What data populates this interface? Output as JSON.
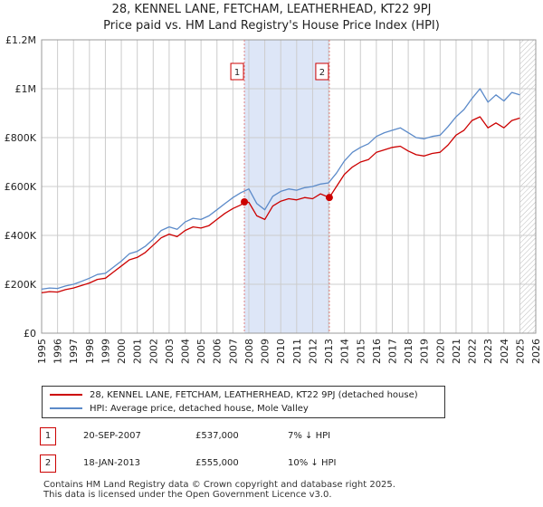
{
  "title": {
    "line1": "28, KENNEL LANE, FETCHAM, LEATHERHEAD, KT22 9PJ",
    "line2": "Price paid vs. HM Land Registry's House Price Index (HPI)"
  },
  "colors": {
    "property": "#cc0000",
    "hpi": "#5b8ac9",
    "shade": "#dde6f7",
    "grid": "#cccccc",
    "marker_line": "#e08080"
  },
  "chart_data": {
    "type": "line",
    "xlim": [
      1995,
      2026
    ],
    "ylim": [
      0,
      1200000
    ],
    "y_ticks": [
      0,
      200000,
      400000,
      600000,
      800000,
      1000000,
      1200000
    ],
    "y_tick_labels": [
      "£0",
      "£200K",
      "£400K",
      "£600K",
      "£800K",
      "£1M",
      "£1.2M"
    ],
    "x_ticks": [
      1995,
      1996,
      1997,
      1998,
      1999,
      2000,
      2001,
      2002,
      2003,
      2004,
      2005,
      2006,
      2007,
      2008,
      2009,
      2010,
      2011,
      2012,
      2013,
      2014,
      2015,
      2016,
      2017,
      2018,
      2019,
      2020,
      2021,
      2022,
      2023,
      2024,
      2025,
      2026
    ],
    "shaded_range": [
      2007.72,
      2013.05
    ],
    "hatched_from": 2025.0,
    "series": [
      {
        "name": "28, KENNEL LANE, FETCHAM, LEATHERHEAD, KT22 9PJ (detached house)",
        "color": "#cc0000",
        "x": [
          1995.0,
          1995.5,
          1996.0,
          1996.5,
          1997.0,
          1997.5,
          1998.0,
          1998.5,
          1999.0,
          1999.5,
          2000.0,
          2000.5,
          2001.0,
          2001.5,
          2002.0,
          2002.5,
          2003.0,
          2003.5,
          2004.0,
          2004.5,
          2005.0,
          2005.5,
          2006.0,
          2006.5,
          2007.0,
          2007.5,
          2007.72,
          2008.0,
          2008.5,
          2009.0,
          2009.5,
          2010.0,
          2010.5,
          2011.0,
          2011.5,
          2012.0,
          2012.5,
          2013.05,
          2013.5,
          2014.0,
          2014.5,
          2015.0,
          2015.5,
          2016.0,
          2016.5,
          2017.0,
          2017.5,
          2018.0,
          2018.5,
          2019.0,
          2019.5,
          2020.0,
          2020.5,
          2021.0,
          2021.5,
          2022.0,
          2022.5,
          2023.0,
          2023.5,
          2024.0,
          2024.5,
          2025.0
        ],
        "values": [
          165000,
          170000,
          168000,
          178000,
          185000,
          195000,
          205000,
          220000,
          225000,
          250000,
          275000,
          300000,
          310000,
          330000,
          360000,
          390000,
          405000,
          395000,
          420000,
          435000,
          430000,
          440000,
          465000,
          490000,
          510000,
          525000,
          537000,
          535000,
          480000,
          465000,
          520000,
          540000,
          550000,
          545000,
          555000,
          550000,
          570000,
          555000,
          600000,
          650000,
          680000,
          700000,
          710000,
          740000,
          750000,
          760000,
          765000,
          745000,
          730000,
          725000,
          735000,
          740000,
          770000,
          810000,
          830000,
          870000,
          885000,
          840000,
          860000,
          840000,
          870000,
          880000
        ]
      },
      {
        "name": "HPI: Average price, detached house, Mole Valley",
        "color": "#5b8ac9",
        "x": [
          1995.0,
          1995.5,
          1996.0,
          1996.5,
          1997.0,
          1997.5,
          1998.0,
          1998.5,
          1999.0,
          1999.5,
          2000.0,
          2000.5,
          2001.0,
          2001.5,
          2002.0,
          2002.5,
          2003.0,
          2003.5,
          2004.0,
          2004.5,
          2005.0,
          2005.5,
          2006.0,
          2006.5,
          2007.0,
          2007.5,
          2008.0,
          2008.5,
          2009.0,
          2009.5,
          2010.0,
          2010.5,
          2011.0,
          2011.5,
          2012.0,
          2012.5,
          2013.0,
          2013.5,
          2014.0,
          2014.5,
          2015.0,
          2015.5,
          2016.0,
          2016.5,
          2017.0,
          2017.5,
          2018.0,
          2018.5,
          2019.0,
          2019.5,
          2020.0,
          2020.5,
          2021.0,
          2021.5,
          2022.0,
          2022.5,
          2023.0,
          2023.5,
          2024.0,
          2024.5,
          2025.0
        ],
        "values": [
          180000,
          185000,
          183000,
          193000,
          200000,
          212000,
          225000,
          240000,
          245000,
          270000,
          295000,
          325000,
          335000,
          355000,
          385000,
          420000,
          435000,
          425000,
          455000,
          470000,
          465000,
          480000,
          505000,
          530000,
          555000,
          575000,
          590000,
          530000,
          505000,
          560000,
          580000,
          590000,
          585000,
          595000,
          600000,
          610000,
          615000,
          655000,
          705000,
          740000,
          760000,
          775000,
          805000,
          820000,
          830000,
          840000,
          820000,
          800000,
          795000,
          805000,
          810000,
          845000,
          885000,
          915000,
          960000,
          1000000,
          945000,
          975000,
          950000,
          985000,
          975000
        ]
      }
    ],
    "markers": [
      {
        "label": "1",
        "x": 2007.72,
        "value": 537000
      },
      {
        "label": "2",
        "x": 2013.05,
        "value": 555000
      }
    ]
  },
  "legend": {
    "property_label": "28, KENNEL LANE, FETCHAM, LEATHERHEAD, KT22 9PJ (detached house)",
    "hpi_label": "HPI: Average price, detached house, Mole Valley"
  },
  "annotations": [
    {
      "num": "1",
      "date": "20-SEP-2007",
      "price": "£537,000",
      "hpi": "7% ↓ HPI"
    },
    {
      "num": "2",
      "date": "18-JAN-2013",
      "price": "£555,000",
      "hpi": "10% ↓ HPI"
    }
  ],
  "footer": {
    "line1": "Contains HM Land Registry data © Crown copyright and database right 2025.",
    "line2": "This data is licensed under the Open Government Licence v3.0."
  }
}
